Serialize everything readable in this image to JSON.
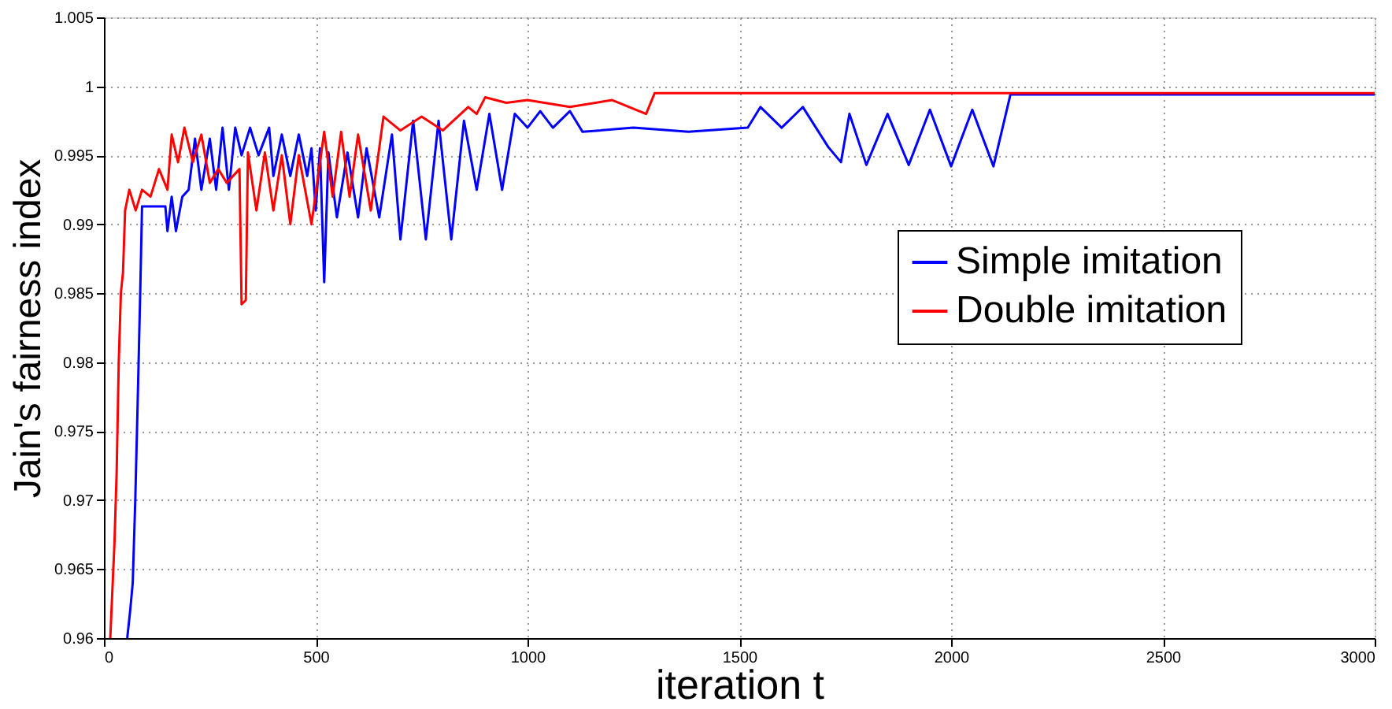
{
  "chart_data": {
    "type": "line",
    "xlabel": "iteration t",
    "ylabel": "Jain's fairness index",
    "xlim": [
      0,
      3000
    ],
    "xticks": [
      0,
      500,
      1000,
      1500,
      2000,
      2500,
      3000
    ],
    "ylim": [
      0.96,
      1.005
    ],
    "yticks": [
      0.96,
      0.965,
      0.97,
      0.975,
      0.98,
      0.985,
      0.99,
      0.995,
      1,
      1.005
    ],
    "grid": true,
    "legend": "right",
    "marker": "none",
    "line_style": "solid",
    "series": [
      {
        "name": "Simple imitation",
        "color": "#0000ff",
        "x": [
          55,
          62,
          68,
          74,
          80,
          86,
          90,
          145,
          150,
          160,
          170,
          185,
          200,
          215,
          230,
          250,
          265,
          280,
          295,
          310,
          325,
          345,
          365,
          390,
          400,
          420,
          440,
          460,
          480,
          490,
          500,
          510,
          520,
          530,
          550,
          575,
          600,
          620,
          650,
          680,
          700,
          730,
          760,
          790,
          820,
          850,
          880,
          910,
          940,
          970,
          1000,
          1030,
          1060,
          1100,
          1130,
          1250,
          1380,
          1520,
          1550,
          1600,
          1650,
          1710,
          1740,
          1760,
          1800,
          1850,
          1900,
          1950,
          2000,
          2050,
          2100,
          2140,
          3000
        ],
        "values": [
          0.96,
          0.962,
          0.964,
          0.97,
          0.9775,
          0.9855,
          0.9913,
          0.9913,
          0.9895,
          0.992,
          0.9895,
          0.992,
          0.9925,
          0.9962,
          0.9925,
          0.9962,
          0.9925,
          0.997,
          0.9925,
          0.997,
          0.995,
          0.997,
          0.995,
          0.997,
          0.9935,
          0.9965,
          0.9935,
          0.9965,
          0.9935,
          0.9955,
          0.991,
          0.9955,
          0.9858,
          0.9952,
          0.9905,
          0.9952,
          0.9905,
          0.9955,
          0.9905,
          0.9965,
          0.9889,
          0.9975,
          0.9889,
          0.9975,
          0.9889,
          0.9975,
          0.9925,
          0.998,
          0.9925,
          0.998,
          0.997,
          0.9982,
          0.997,
          0.9982,
          0.9967,
          0.997,
          0.9967,
          0.997,
          0.9985,
          0.997,
          0.9985,
          0.9956,
          0.9945,
          0.998,
          0.9943,
          0.998,
          0.9943,
          0.9983,
          0.9942,
          0.9983,
          0.9942,
          0.9994,
          0.9994
        ]
      },
      {
        "name": "Double imitation",
        "color": "#ff0000",
        "x": [
          15,
          20,
          25,
          30,
          35,
          40,
          45,
          50,
          60,
          75,
          90,
          110,
          130,
          150,
          160,
          175,
          190,
          210,
          230,
          250,
          270,
          290,
          320,
          325,
          335,
          340,
          360,
          380,
          400,
          420,
          440,
          460,
          490,
          520,
          540,
          560,
          580,
          600,
          630,
          660,
          700,
          750,
          800,
          860,
          880,
          900,
          950,
          1000,
          1100,
          1200,
          1280,
          1300,
          3000
        ],
        "values": [
          0.96,
          0.9635,
          0.967,
          0.972,
          0.98,
          0.985,
          0.9865,
          0.991,
          0.9925,
          0.991,
          0.9925,
          0.992,
          0.994,
          0.9925,
          0.9965,
          0.9945,
          0.997,
          0.9945,
          0.9965,
          0.993,
          0.994,
          0.993,
          0.994,
          0.9842,
          0.9845,
          0.9952,
          0.991,
          0.9952,
          0.991,
          0.995,
          0.99,
          0.995,
          0.99,
          0.9967,
          0.992,
          0.9967,
          0.992,
          0.9965,
          0.991,
          0.9978,
          0.9968,
          0.9978,
          0.9968,
          0.9985,
          0.998,
          0.9992,
          0.9988,
          0.999,
          0.9985,
          0.999,
          0.998,
          0.9995,
          0.9995
        ]
      }
    ]
  }
}
